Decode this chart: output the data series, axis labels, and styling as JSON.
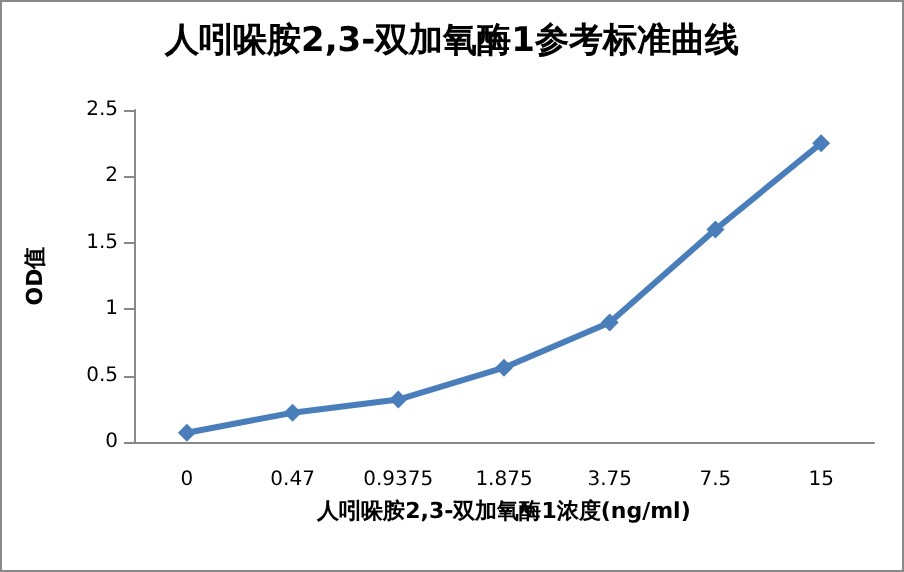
{
  "chart_data": {
    "type": "line",
    "title": "人吲哚胺2,3-双加氧酶1参考标准曲线",
    "xlabel": "人吲哚胺2,3-双加氧酶1浓度(ng/ml)",
    "ylabel": "OD值",
    "categories": [
      "0",
      "0.47",
      "0.9375",
      "1.875",
      "3.75",
      "7.5",
      "15"
    ],
    "series": [
      {
        "color": "#4a7ebb",
        "values": [
          0.07,
          0.22,
          0.32,
          0.56,
          0.9,
          1.6,
          2.25
        ]
      }
    ],
    "ylim": [
      0,
      2.5
    ],
    "yticks": [
      0,
      0.5,
      1,
      1.5,
      2,
      2.5
    ],
    "grid": false,
    "marker": "diamond",
    "line_style": "solid"
  }
}
